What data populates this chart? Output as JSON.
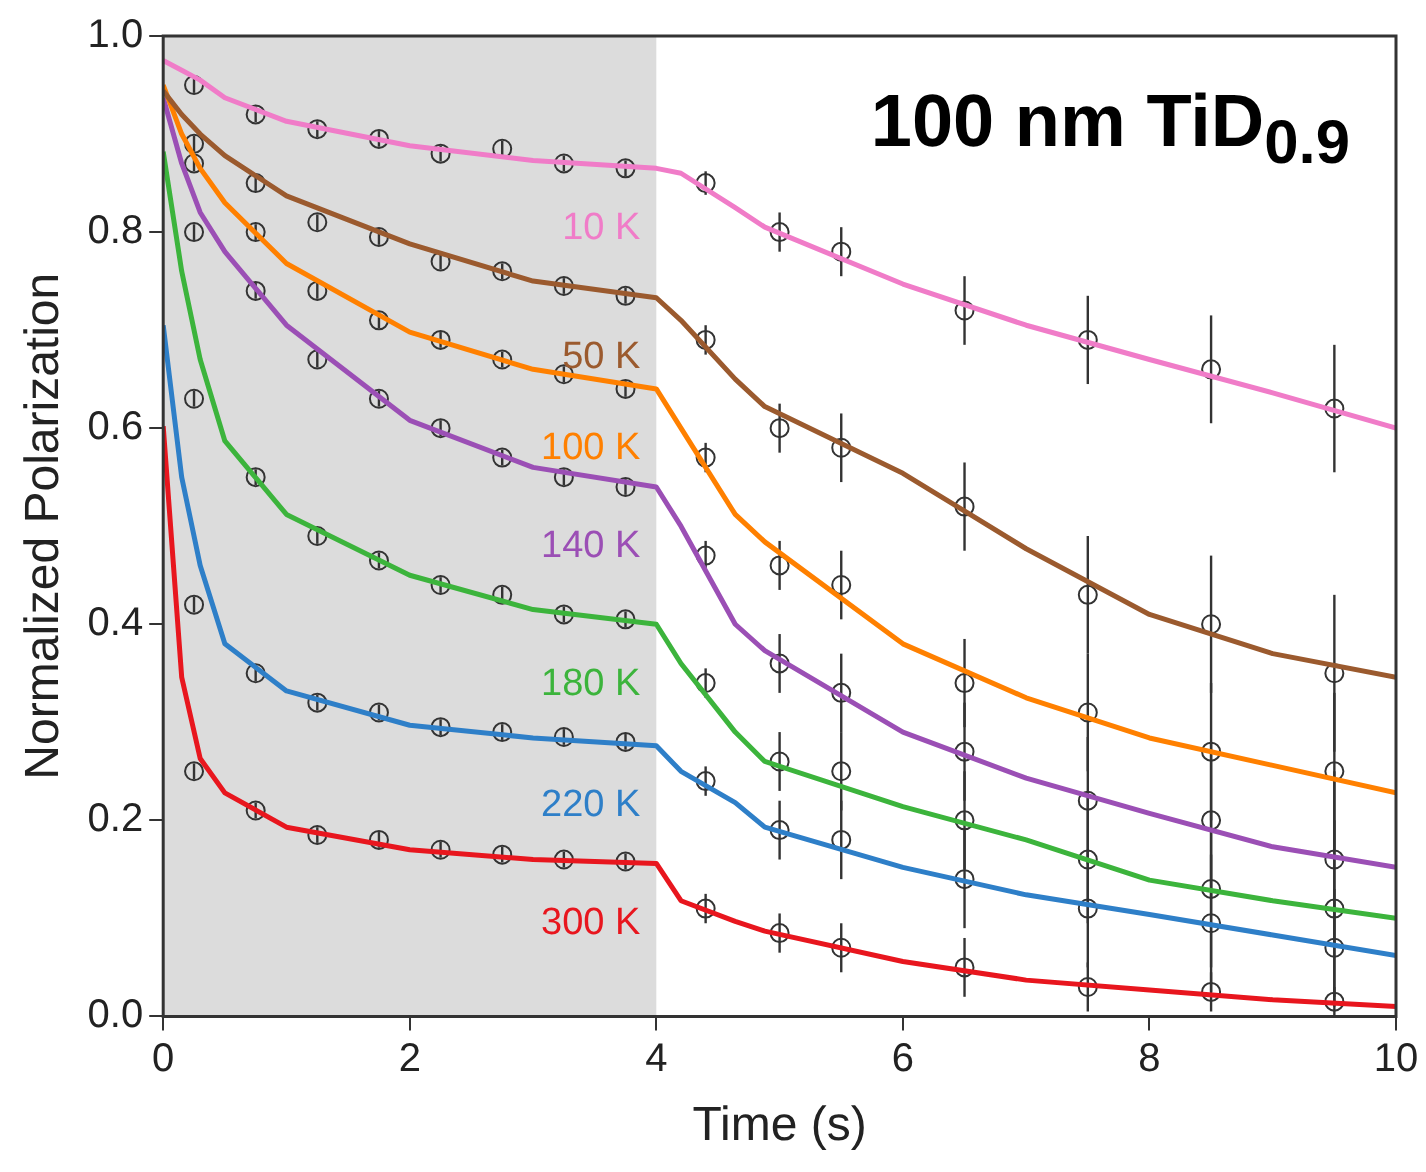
{
  "chart_data": {
    "type": "line",
    "title": "100 nm TiD$_{0.9}$",
    "xlabel": "Time (s)",
    "ylabel": "Normalized Polarization",
    "xlim": [
      0,
      10
    ],
    "xticks": [
      0,
      2,
      4,
      6,
      8,
      10
    ],
    "ylim": [
      0,
      1
    ],
    "yticks": [
      {
        "value": 0,
        "label": "0.0"
      },
      0.2,
      0.4,
      0.6,
      0.8,
      {
        "value": 1,
        "label": "1.0"
      }
    ],
    "grid": false,
    "legend": false,
    "bands": [
      {
        "axis": "x",
        "from": 0,
        "to": 4,
        "color": "#dcdcdc"
      }
    ],
    "series": [
      {
        "type": "scatter",
        "marker": "circle",
        "color": "#333333",
        "x": [
          0.25,
          0.75,
          1.25,
          1.75,
          2.25,
          2.75,
          3.25,
          3.75,
          4.4,
          5,
          5.5,
          6.5,
          7.5,
          8.5,
          9.5
        ],
        "values": [
          0.95,
          0.92,
          0.905,
          0.895,
          0.88,
          0.885,
          0.87,
          0.865,
          0.85,
          0.8,
          0.78,
          0.72,
          0.69,
          0.66,
          0.62
        ],
        "errors": [
          0.008,
          0.008,
          0.008,
          0.008,
          0.008,
          0.008,
          0.008,
          0.008,
          0.012,
          0.02,
          0.025,
          0.035,
          0.045,
          0.055,
          0.065
        ]
      },
      {
        "type": "scatter",
        "marker": "circle",
        "color": "#333333",
        "x": [
          0.25,
          0.75,
          1.25,
          1.75,
          2.25,
          2.75,
          3.25,
          3.75,
          4.4,
          5,
          5.5,
          6.5,
          7.5,
          8.5,
          9.5
        ],
        "values": [
          0.89,
          0.85,
          0.81,
          0.795,
          0.77,
          0.76,
          0.745,
          0.735,
          0.69,
          0.6,
          0.58,
          0.52,
          0.43,
          0.4,
          0.35
        ],
        "errors": [
          0.008,
          0.008,
          0.008,
          0.008,
          0.008,
          0.008,
          0.008,
          0.008,
          0.015,
          0.025,
          0.035,
          0.045,
          0.06,
          0.07,
          0.08
        ]
      },
      {
        "type": "scatter",
        "marker": "circle",
        "color": "#333333",
        "x": [
          0.25,
          0.75,
          1.25,
          1.75,
          2.25,
          2.75,
          3.25,
          3.75,
          4.4,
          5,
          5.5,
          6.5,
          7.5,
          8.5,
          9.5
        ],
        "values": [
          0.87,
          0.8,
          0.74,
          0.71,
          0.69,
          0.67,
          0.655,
          0.64,
          0.57,
          0.46,
          0.44,
          0.34,
          0.31,
          0.27,
          0.25
        ],
        "errors": [
          0.008,
          0.008,
          0.008,
          0.008,
          0.008,
          0.008,
          0.008,
          0.008,
          0.015,
          0.025,
          0.035,
          0.045,
          0.06,
          0.07,
          0.08
        ]
      },
      {
        "type": "scatter",
        "marker": "circle",
        "color": "#333333",
        "x": [
          0.25,
          0.75,
          1.25,
          1.75,
          2.25,
          2.75,
          3.25,
          3.75,
          4.4,
          5,
          5.5,
          6.5,
          7.5,
          8.5,
          9.5
        ],
        "values": [
          0.8,
          0.74,
          0.67,
          0.63,
          0.6,
          0.57,
          0.55,
          0.54,
          0.47,
          0.36,
          0.33,
          0.27,
          0.22,
          0.2,
          0.16
        ],
        "errors": [
          0.008,
          0.008,
          0.008,
          0.008,
          0.008,
          0.008,
          0.008,
          0.008,
          0.015,
          0.03,
          0.04,
          0.05,
          0.065,
          0.08,
          0.09
        ]
      },
      {
        "type": "scatter",
        "marker": "circle",
        "color": "#333333",
        "x": [
          0.25,
          0.75,
          1.25,
          1.75,
          2.25,
          2.75,
          3.25,
          3.75,
          4.4,
          5,
          5.5,
          6.5,
          7.5,
          8.5,
          9.5
        ],
        "values": [
          0.63,
          0.55,
          0.49,
          0.465,
          0.44,
          0.43,
          0.41,
          0.405,
          0.34,
          0.26,
          0.25,
          0.2,
          0.16,
          0.13,
          0.11
        ],
        "errors": [
          0.008,
          0.008,
          0.008,
          0.008,
          0.008,
          0.008,
          0.008,
          0.008,
          0.015,
          0.03,
          0.04,
          0.05,
          0.065,
          0.08,
          0.09
        ]
      },
      {
        "type": "scatter",
        "marker": "circle",
        "color": "#333333",
        "x": [
          0.25,
          0.75,
          1.25,
          1.75,
          2.25,
          2.75,
          3.25,
          3.75,
          4.4,
          5,
          5.5,
          6.5,
          7.5,
          8.5,
          9.5
        ],
        "values": [
          0.42,
          0.35,
          0.32,
          0.31,
          0.295,
          0.29,
          0.285,
          0.28,
          0.24,
          0.19,
          0.18,
          0.14,
          0.11,
          0.095,
          0.07
        ],
        "errors": [
          0.008,
          0.008,
          0.008,
          0.008,
          0.008,
          0.008,
          0.008,
          0.008,
          0.015,
          0.03,
          0.04,
          0.05,
          0.06,
          0.07,
          0.06
        ]
      },
      {
        "type": "scatter",
        "marker": "circle",
        "color": "#333333",
        "x": [
          0.25,
          0.75,
          1.25,
          1.75,
          2.25,
          2.75,
          3.25,
          3.75,
          4.4,
          5,
          5.5,
          6.5,
          7.5,
          8.5,
          9.5
        ],
        "values": [
          0.25,
          0.21,
          0.185,
          0.18,
          0.17,
          0.165,
          0.16,
          0.158,
          0.11,
          0.085,
          0.07,
          0.05,
          0.03,
          0.025,
          0.015
        ],
        "errors": [
          0.008,
          0.008,
          0.008,
          0.008,
          0.008,
          0.008,
          0.008,
          0.008,
          0.015,
          0.02,
          0.025,
          0.03,
          0.025,
          0.02,
          0.015
        ]
      },
      {
        "type": "line",
        "marker": "none",
        "name": "10 K",
        "color": "#f07cc8",
        "x": [
          0,
          0.15,
          0.3,
          0.5,
          1,
          2,
          3,
          4,
          4.2,
          4.64,
          4.88,
          6,
          7,
          8,
          9,
          10
        ],
        "values": [
          0.975,
          0.965,
          0.955,
          0.937,
          0.913,
          0.888,
          0.873,
          0.865,
          0.86,
          0.825,
          0.805,
          0.747,
          0.705,
          0.67,
          0.636,
          0.6
        ]
      },
      {
        "type": "line",
        "marker": "none",
        "name": "50 K",
        "color": "#9b5a2e",
        "x": [
          0,
          0.15,
          0.3,
          0.5,
          1,
          2,
          3,
          4,
          4.2,
          4.64,
          4.88,
          6,
          7,
          8,
          9,
          10
        ],
        "values": [
          0.944,
          0.92,
          0.9,
          0.878,
          0.837,
          0.788,
          0.75,
          0.733,
          0.71,
          0.65,
          0.622,
          0.554,
          0.477,
          0.41,
          0.37,
          0.346
        ]
      },
      {
        "type": "line",
        "marker": "none",
        "name": "100 K",
        "color": "#ff8000",
        "x": [
          0,
          0.15,
          0.3,
          0.5,
          1,
          2,
          3,
          4,
          4.2,
          4.64,
          4.88,
          6,
          7,
          8,
          9,
          10
        ],
        "values": [
          0.95,
          0.9,
          0.865,
          0.83,
          0.768,
          0.698,
          0.66,
          0.64,
          0.6,
          0.512,
          0.484,
          0.38,
          0.325,
          0.284,
          0.256,
          0.228
        ]
      },
      {
        "type": "line",
        "marker": "none",
        "name": "140 K",
        "color": "#9b4fb5",
        "x": [
          0,
          0.15,
          0.3,
          0.5,
          1,
          2,
          3,
          4,
          4.2,
          4.64,
          4.88,
          6,
          7,
          8,
          9,
          10
        ],
        "values": [
          0.937,
          0.87,
          0.82,
          0.78,
          0.705,
          0.608,
          0.56,
          0.54,
          0.5,
          0.4,
          0.373,
          0.29,
          0.243,
          0.207,
          0.173,
          0.152
        ]
      },
      {
        "type": "line",
        "marker": "none",
        "name": "180 K",
        "color": "#3cb43c",
        "x": [
          0,
          0.15,
          0.3,
          0.5,
          1,
          2,
          3,
          4,
          4.2,
          4.64,
          4.88,
          6,
          7,
          8,
          9,
          10
        ],
        "values": [
          0.882,
          0.76,
          0.67,
          0.587,
          0.512,
          0.45,
          0.415,
          0.4,
          0.36,
          0.29,
          0.26,
          0.214,
          0.18,
          0.139,
          0.118,
          0.1
        ]
      },
      {
        "type": "line",
        "marker": "none",
        "name": "220 K",
        "color": "#2e7fc8",
        "x": [
          0,
          0.15,
          0.3,
          0.5,
          1,
          2,
          3,
          4,
          4.2,
          4.64,
          4.88,
          6,
          7,
          8,
          9,
          10
        ],
        "values": [
          0.705,
          0.55,
          0.46,
          0.38,
          0.332,
          0.297,
          0.284,
          0.276,
          0.25,
          0.218,
          0.193,
          0.152,
          0.124,
          0.104,
          0.083,
          0.062
        ]
      },
      {
        "type": "line",
        "marker": "none",
        "name": "300 K",
        "color": "#e8161e",
        "x": [
          0,
          0.15,
          0.3,
          0.5,
          1,
          2,
          3,
          4,
          4.2,
          4.64,
          4.88,
          6,
          7,
          8,
          9,
          10
        ],
        "values": [
          0.602,
          0.346,
          0.263,
          0.228,
          0.193,
          0.17,
          0.16,
          0.156,
          0.118,
          0.097,
          0.087,
          0.056,
          0.037,
          0.027,
          0.017,
          0.01
        ]
      }
    ]
  }
}
